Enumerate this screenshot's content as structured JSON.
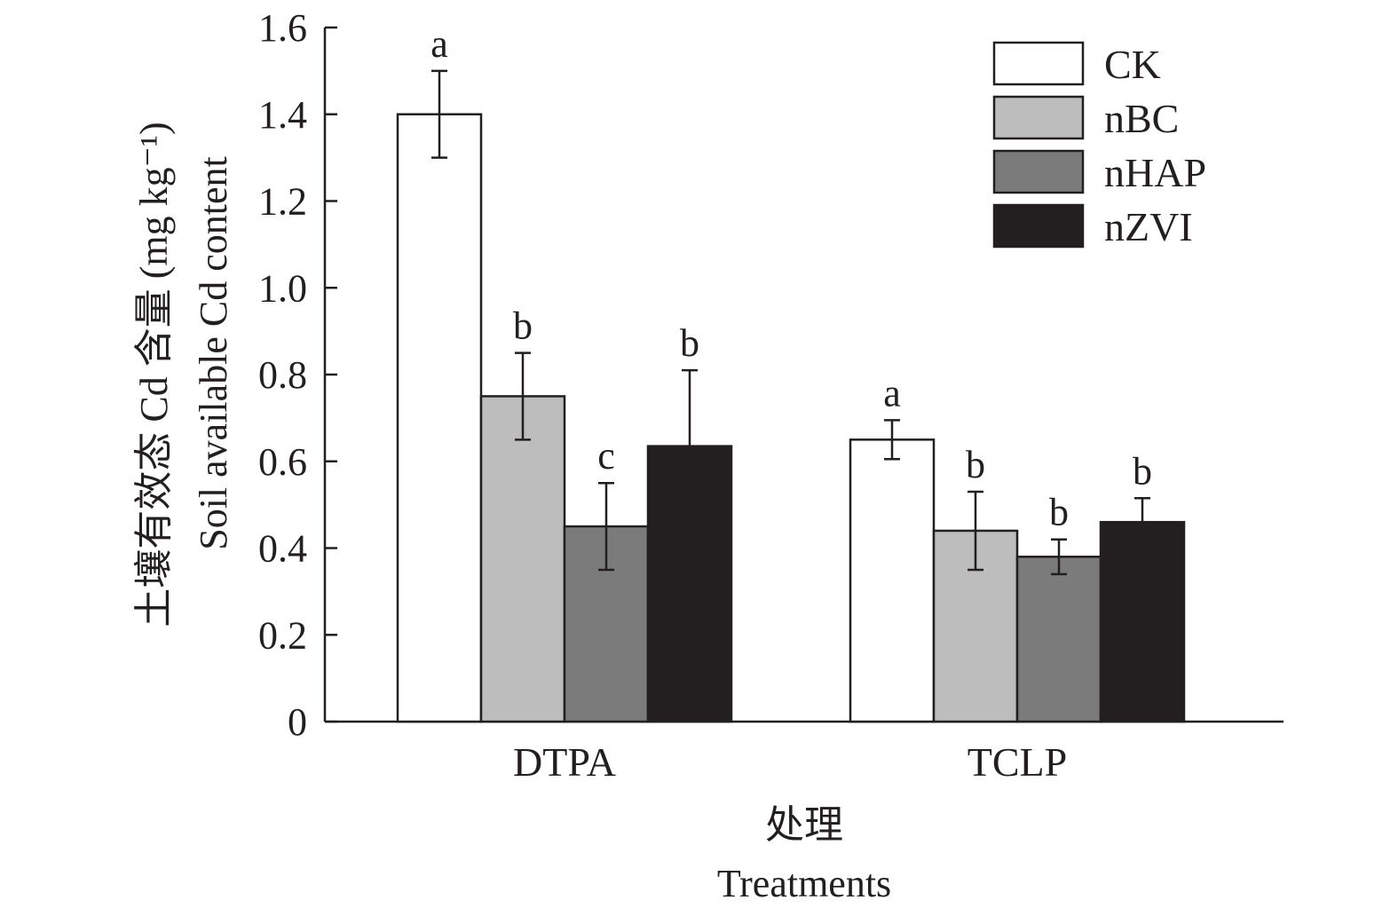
{
  "chart_data": {
    "type": "bar",
    "categories": [
      "DTPA",
      "TCLP"
    ],
    "series": [
      {
        "name": "CK",
        "color": "#ffffff",
        "values": [
          1.4,
          0.65
        ],
        "errors": [
          0.1,
          0.045
        ],
        "letters": [
          "a",
          "a"
        ]
      },
      {
        "name": "nBC",
        "color": "#bdbdbd",
        "values": [
          0.75,
          0.44
        ],
        "errors": [
          0.1,
          0.09
        ],
        "letters": [
          "b",
          "b"
        ]
      },
      {
        "name": "nHAP",
        "color": "#7c7b7b",
        "values": [
          0.45,
          0.38
        ],
        "errors": [
          0.1,
          0.04
        ],
        "letters": [
          "c",
          "b"
        ]
      },
      {
        "name": "nZVI",
        "color": "#231f20",
        "values": [
          0.635,
          0.46
        ],
        "errors": [
          0.175,
          0.055
        ],
        "letters": [
          "b",
          "b"
        ]
      }
    ],
    "ylim": [
      0,
      1.6
    ],
    "yticks": [
      "0",
      "0.2",
      "0.4",
      "0.6",
      "0.8",
      "1.0",
      "1.2",
      "1.4",
      "1.6"
    ],
    "ylabel_cn": "土壤有效态 Cd 含量 (mg kg⁻¹)",
    "ylabel_en": "Soil available Cd content",
    "xlabel_cn": "处理",
    "xlabel_en": "Treatments",
    "legend_position": "top-right",
    "grid": false
  }
}
